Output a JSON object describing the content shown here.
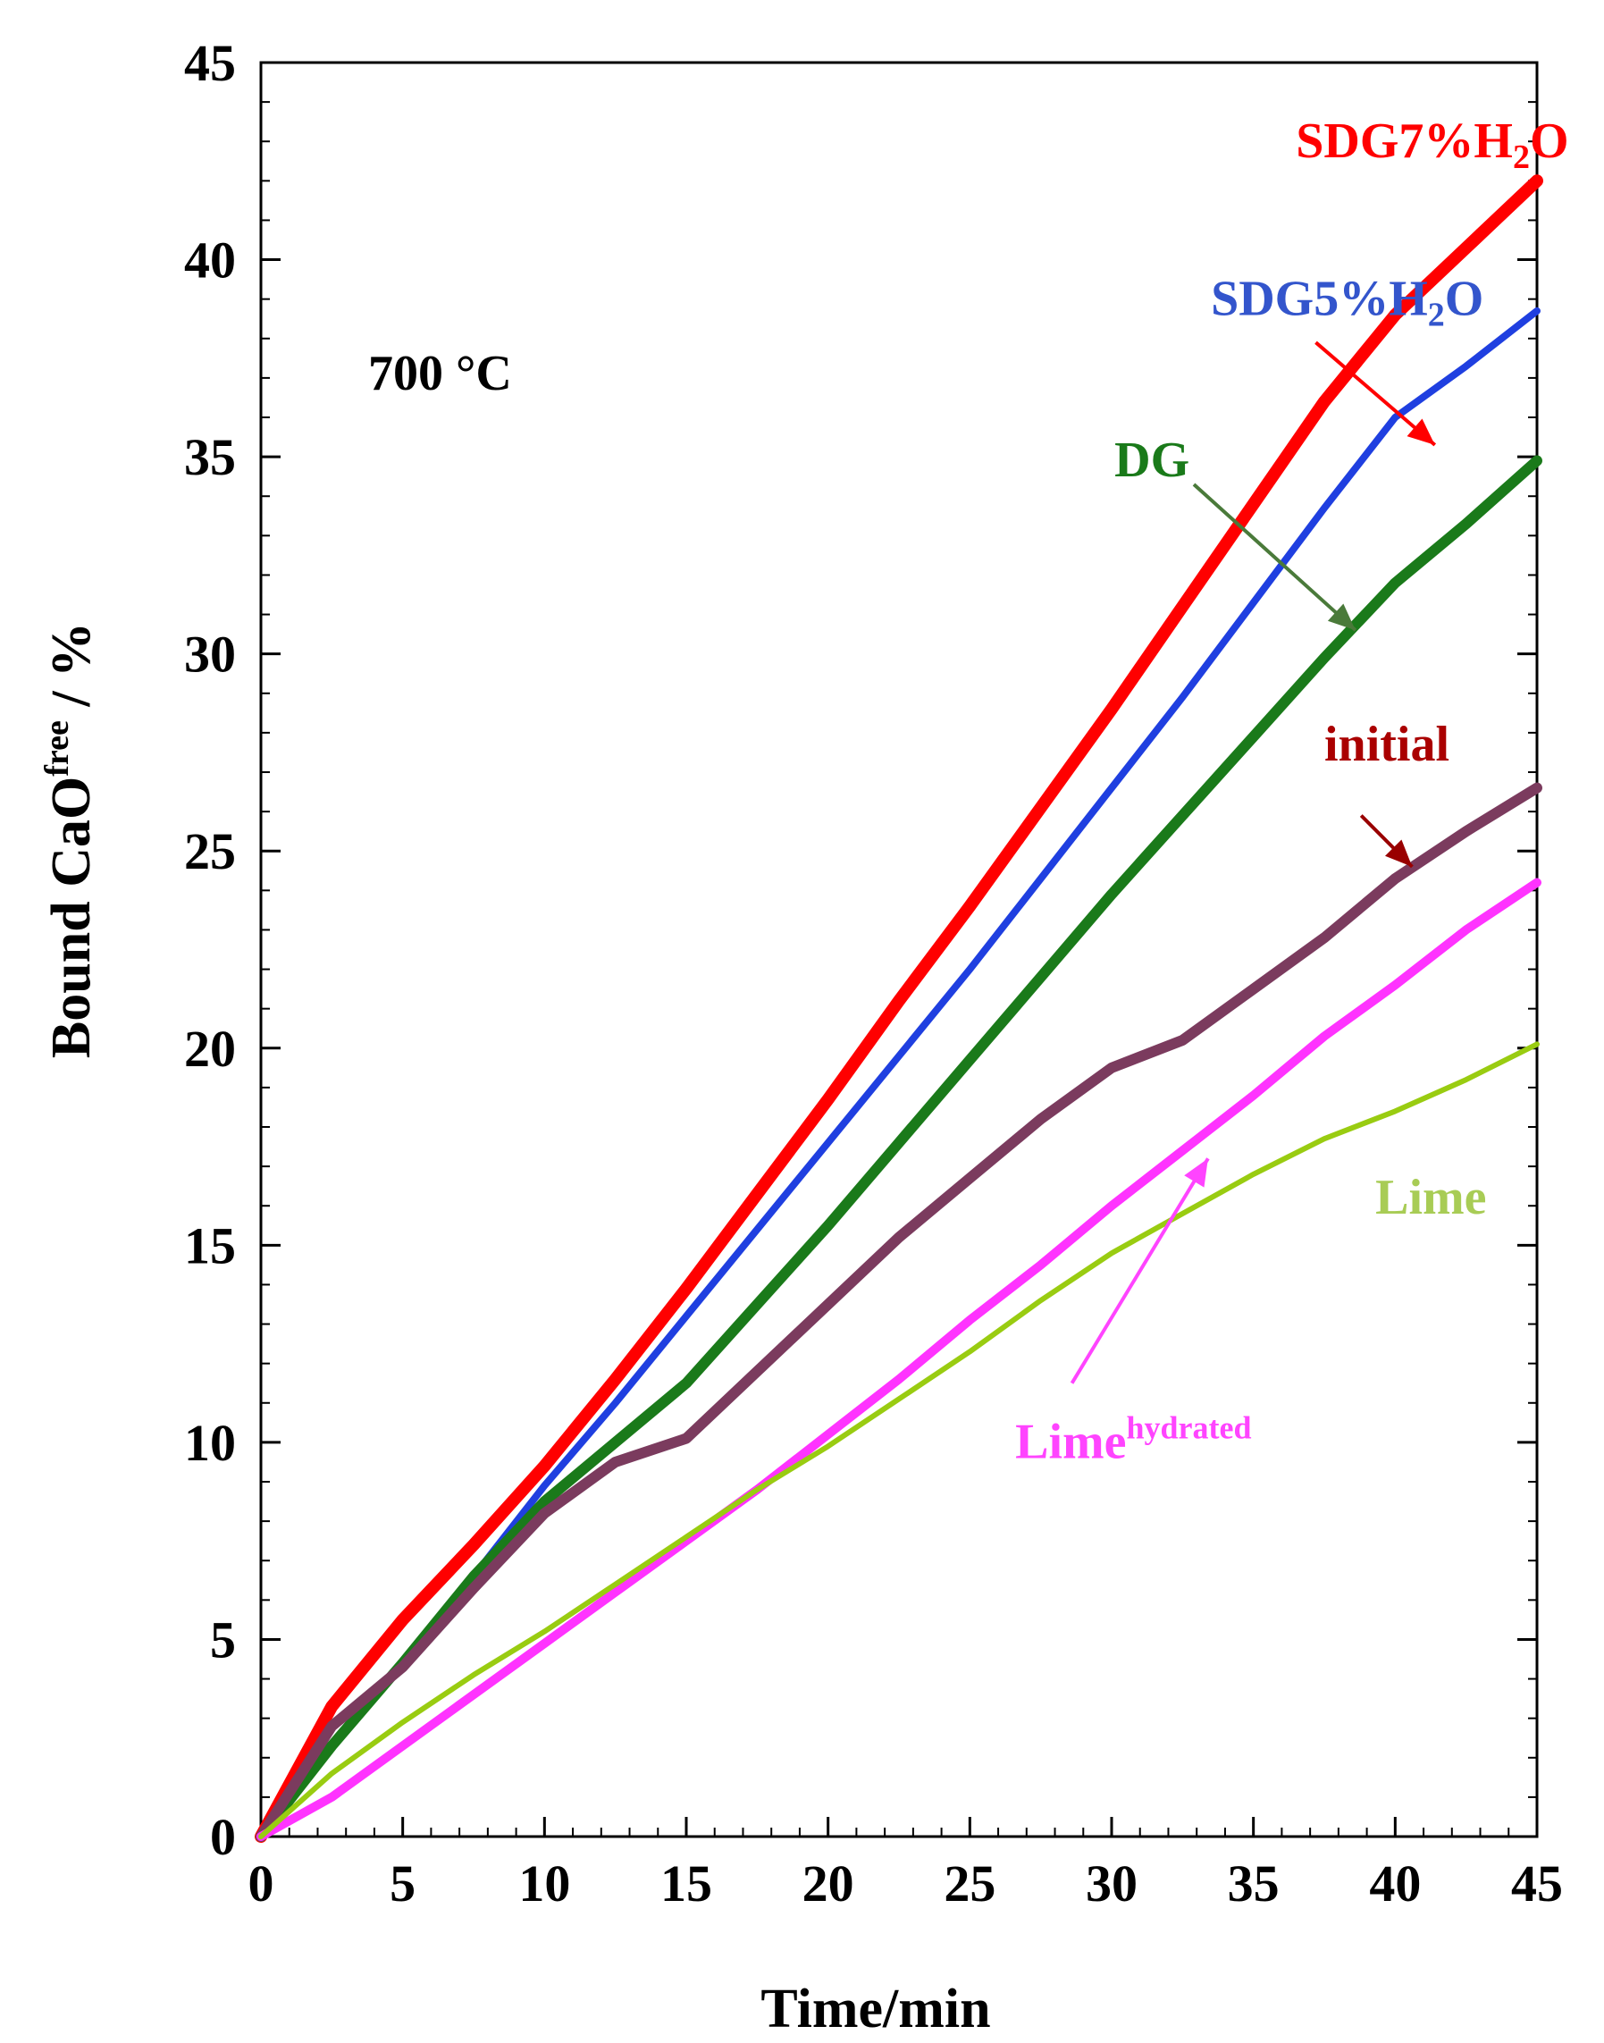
{
  "chart_data": {
    "type": "line",
    "title": "",
    "xlabel": "Time/min",
    "ylabel": "Bound CaO",
    "ylabel_sup": "free",
    "ylabel_suffix": " / %",
    "xlim": [
      0,
      45
    ],
    "ylim": [
      0,
      45
    ],
    "xticks": [
      0,
      5,
      10,
      15,
      20,
      25,
      30,
      35,
      40,
      45
    ],
    "yticks": [
      0,
      5,
      10,
      15,
      20,
      25,
      30,
      35,
      40,
      45
    ],
    "grid": false,
    "condition_label": "700 °C",
    "x": [
      0,
      2.5,
      5,
      7.5,
      10,
      12.5,
      15,
      17.5,
      20,
      22.5,
      25,
      27.5,
      30,
      32.5,
      35,
      37.5,
      40,
      42.5,
      45
    ],
    "series": [
      {
        "name": "SDG7%H2O",
        "color": "#ff0000",
        "width": 14,
        "values": [
          0,
          3.3,
          5.5,
          7.4,
          9.4,
          11.6,
          13.9,
          16.3,
          18.7,
          21.2,
          23.6,
          26.1,
          28.6,
          31.2,
          33.8,
          36.4,
          38.6,
          40.3,
          42.0
        ]
      },
      {
        "name": "SDG5%H2O",
        "color": "#1f3fe0",
        "width": 8,
        "values": [
          0,
          2.3,
          4.4,
          6.6,
          8.9,
          11.0,
          13.2,
          15.4,
          17.6,
          19.8,
          22.0,
          24.3,
          26.6,
          28.9,
          31.3,
          33.7,
          36.0,
          37.3,
          38.7
        ]
      },
      {
        "name": "DG",
        "color": "#1a7a1a",
        "width": 12,
        "values": [
          0,
          2.3,
          4.4,
          6.6,
          8.5,
          10.0,
          11.5,
          13.5,
          15.5,
          17.6,
          19.7,
          21.8,
          23.9,
          25.9,
          27.9,
          29.9,
          31.8,
          33.3,
          34.9
        ]
      },
      {
        "name": "initial",
        "color": "#7b3b5e",
        "width": 12,
        "values": [
          0,
          2.8,
          4.3,
          6.3,
          8.2,
          9.5,
          10.1,
          11.8,
          13.5,
          15.2,
          16.7,
          18.2,
          19.5,
          20.2,
          21.5,
          22.8,
          24.3,
          25.5,
          26.6
        ]
      },
      {
        "name": "Limehydrated",
        "color": "#ff33ff",
        "width": 10,
        "values": [
          0,
          1.0,
          2.3,
          3.6,
          4.9,
          6.2,
          7.5,
          8.8,
          10.2,
          11.6,
          13.1,
          14.5,
          16.0,
          17.4,
          18.8,
          20.3,
          21.6,
          23.0,
          24.2
        ]
      },
      {
        "name": "Lime",
        "color": "#99cc11",
        "width": 6,
        "values": [
          0,
          1.6,
          2.9,
          4.1,
          5.2,
          6.4,
          7.6,
          8.8,
          9.9,
          11.1,
          12.3,
          13.6,
          14.8,
          15.8,
          16.8,
          17.7,
          18.4,
          19.2,
          20.1
        ]
      }
    ],
    "annotations": [
      {
        "label": "SDG7%H",
        "sub": "2",
        "suffix": "O",
        "color": "#ff0000",
        "x": 36.5,
        "y": 42.6,
        "arrow": false
      },
      {
        "label": "SDG5%H",
        "sub": "2",
        "suffix": "O",
        "color": "#3355cc",
        "x": 33.5,
        "y": 38.6,
        "arrow_from": [
          37.2,
          37.9
        ],
        "arrow_to": [
          41.4,
          35.3
        ],
        "arrow_color": "#ff0000"
      },
      {
        "label": "DG",
        "sub": "",
        "suffix": "",
        "color": "#1a7a1a",
        "x": 30.1,
        "y": 34.5,
        "arrow_from": [
          32.9,
          34.3
        ],
        "arrow_to": [
          38.6,
          30.6
        ],
        "arrow_color": "#4a7a3a"
      },
      {
        "label": "initial",
        "sub": "",
        "suffix": "",
        "color": "#aa0000",
        "x": 37.5,
        "y": 27.3,
        "arrow_from": [
          38.8,
          25.9
        ],
        "arrow_to": [
          40.6,
          24.6
        ],
        "arrow_color": "#990000"
      },
      {
        "label": "Lime",
        "sub": "",
        "suffix": "",
        "color": "#a8cc55",
        "x": 39.3,
        "y": 15.8,
        "arrow": false
      },
      {
        "label": "Lime",
        "sup": "hydrated",
        "color": "#ff44ff",
        "x": 26.6,
        "y": 9.6,
        "arrow_from": [
          28.6,
          11.5
        ],
        "arrow_to": [
          33.4,
          17.2
        ],
        "arrow_color": "#ff44ff"
      }
    ]
  }
}
